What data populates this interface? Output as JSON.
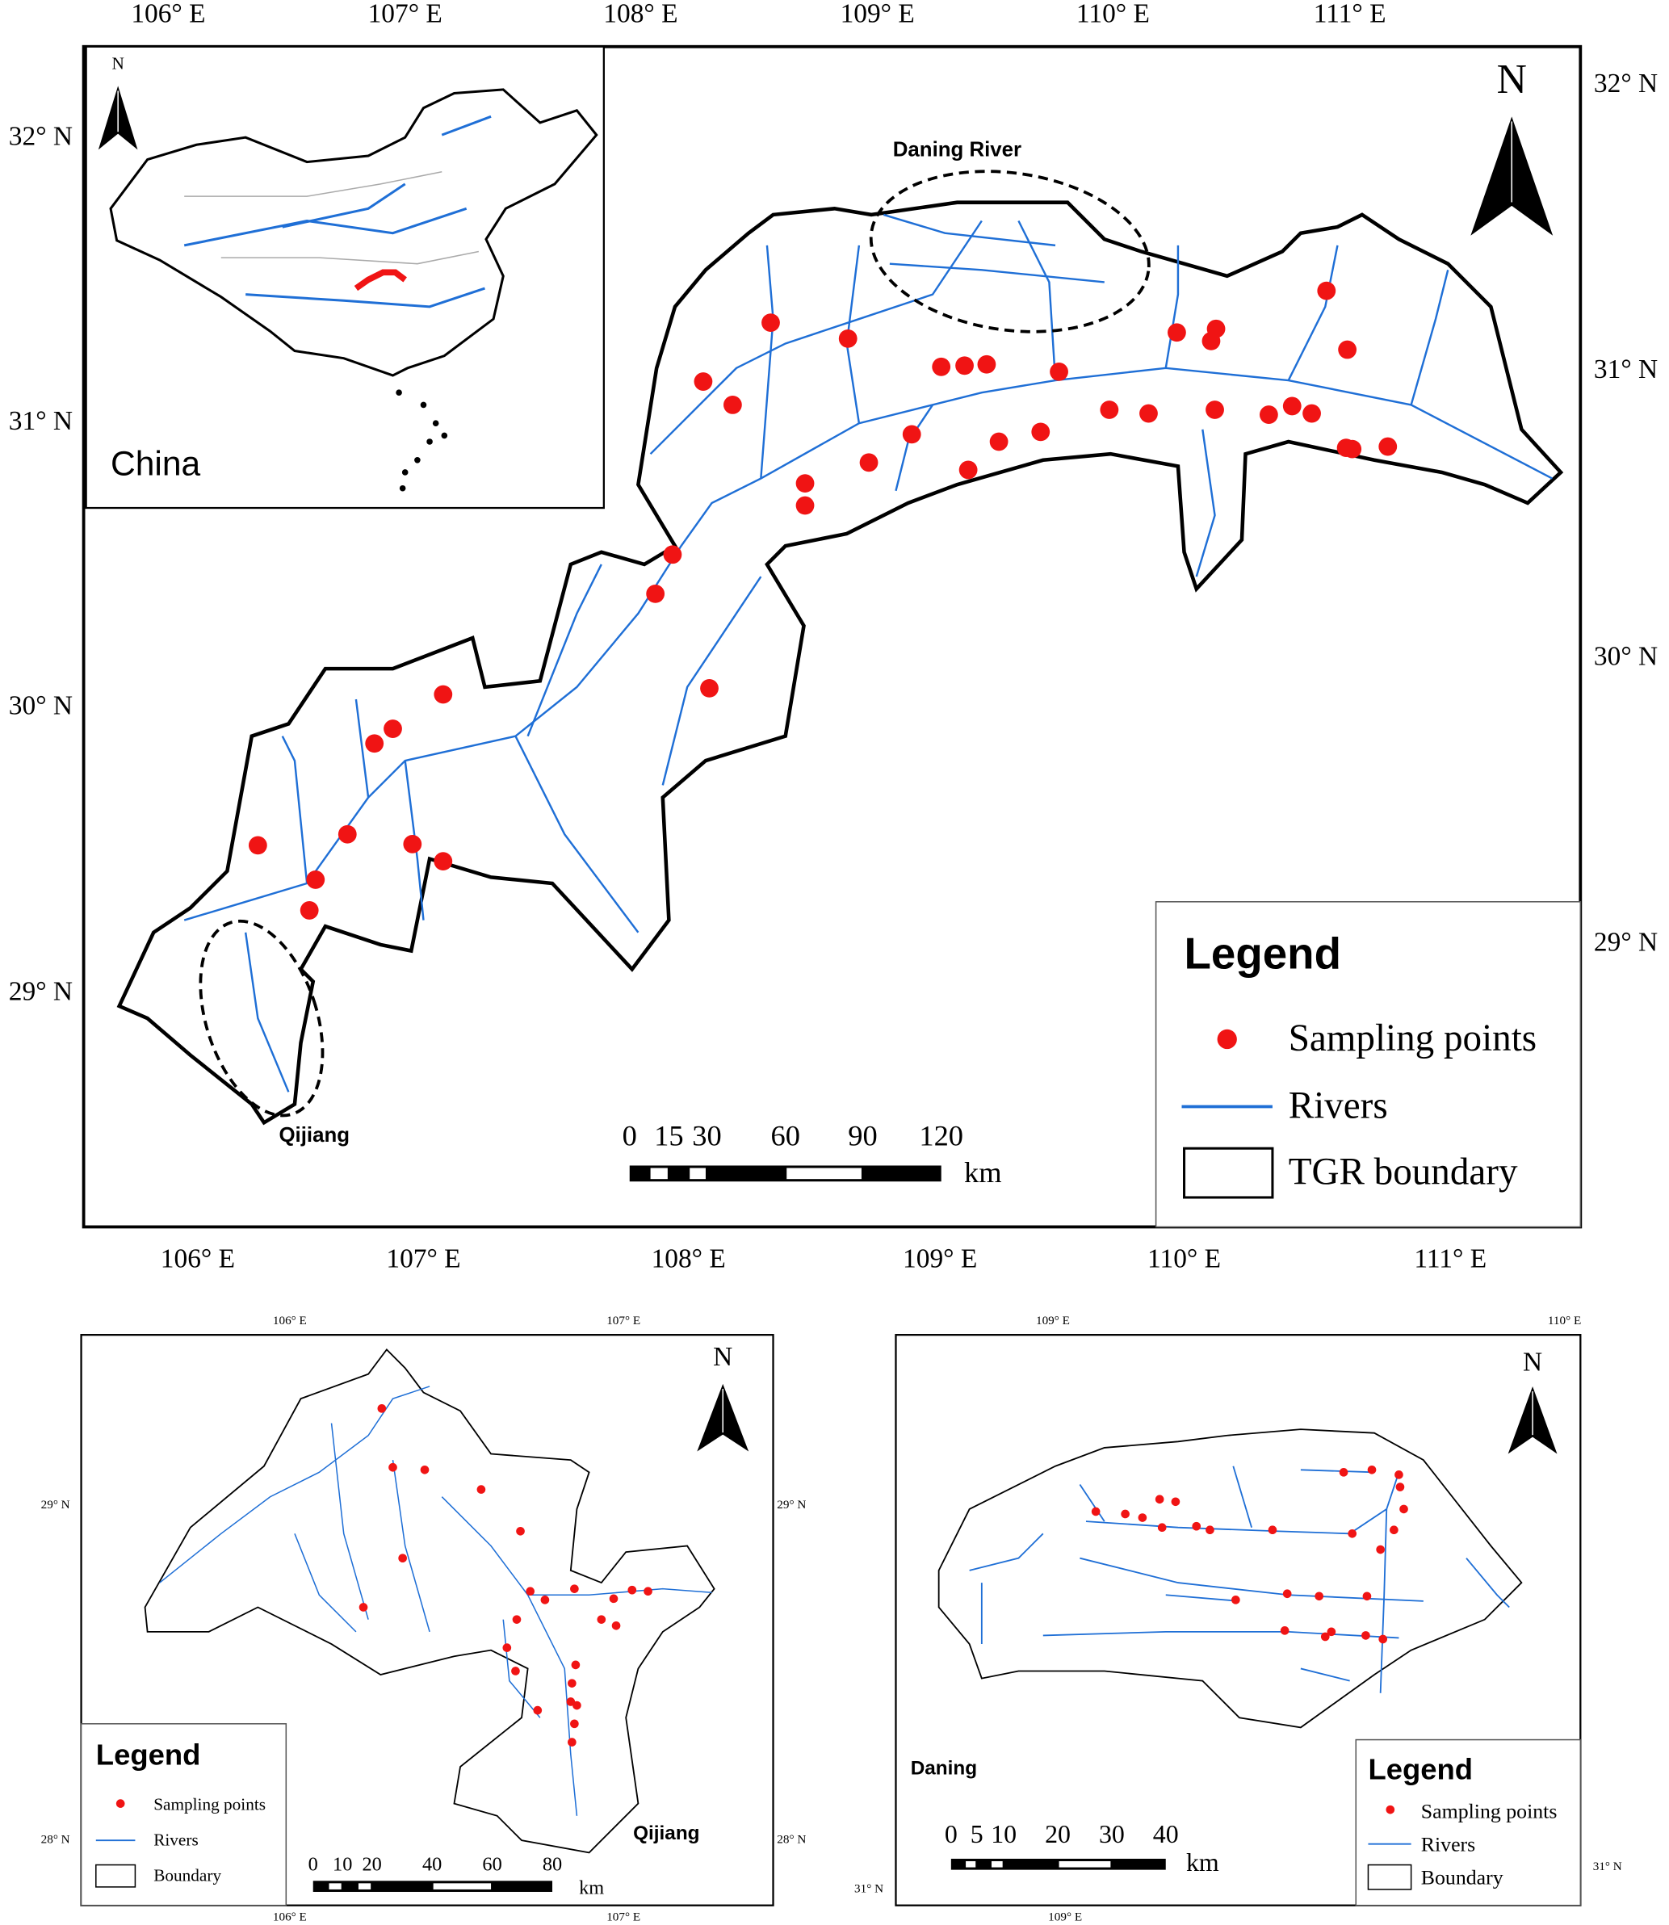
{
  "main_map": {
    "top_labels": [
      "106° E",
      "107° E",
      "108° E",
      "109° E",
      "110° E",
      "111° E"
    ],
    "bottom_labels": [
      "106° E",
      "107° E",
      "108° E",
      "109° E",
      "110° E",
      "111° E"
    ],
    "left_labels": [
      "32° N",
      "31° N",
      "30° N",
      "29° N"
    ],
    "right_labels": [
      "32° N",
      "31° N",
      "30° N",
      "29° N"
    ],
    "north": "N",
    "annotations": [
      "Daning River",
      "Qijiang"
    ],
    "scale": {
      "ticks": [
        "0",
        "15",
        "30",
        "60",
        "90",
        "120"
      ],
      "unit": "km"
    },
    "legend": {
      "title": "Legend",
      "items": [
        "Sampling points",
        "Rivers",
        "TGR boundary"
      ]
    }
  },
  "inset": {
    "north": "N",
    "label": "China"
  },
  "qijiang_map": {
    "top_labels": [
      "106° E",
      "107° E"
    ],
    "bottom_labels": [
      "106° E",
      "107° E"
    ],
    "left_labels": [
      "29° N",
      "28° N"
    ],
    "right_labels": [
      "29° N",
      "28° N"
    ],
    "north": "N",
    "label": "Qijiang",
    "scale": {
      "ticks": [
        "0",
        "10",
        "20",
        "40",
        "60",
        "80"
      ],
      "unit": "km"
    },
    "legend": {
      "title": "Legend",
      "items": [
        "Sampling points",
        "Rivers",
        "Boundary"
      ]
    }
  },
  "daning_map": {
    "top_labels": [
      "109° E",
      "110° E"
    ],
    "bottom_labels": [
      "109° E"
    ],
    "left_labels": [
      "31° N"
    ],
    "right_labels": [
      "31° N"
    ],
    "north": "N",
    "label": "Daning",
    "scale": {
      "ticks": [
        "0",
        "5",
        "10",
        "20",
        "30",
        "40"
      ],
      "unit": "km"
    },
    "legend": {
      "title": "Legend",
      "items": [
        "Sampling points",
        "Rivers",
        "Boundary"
      ]
    }
  }
}
